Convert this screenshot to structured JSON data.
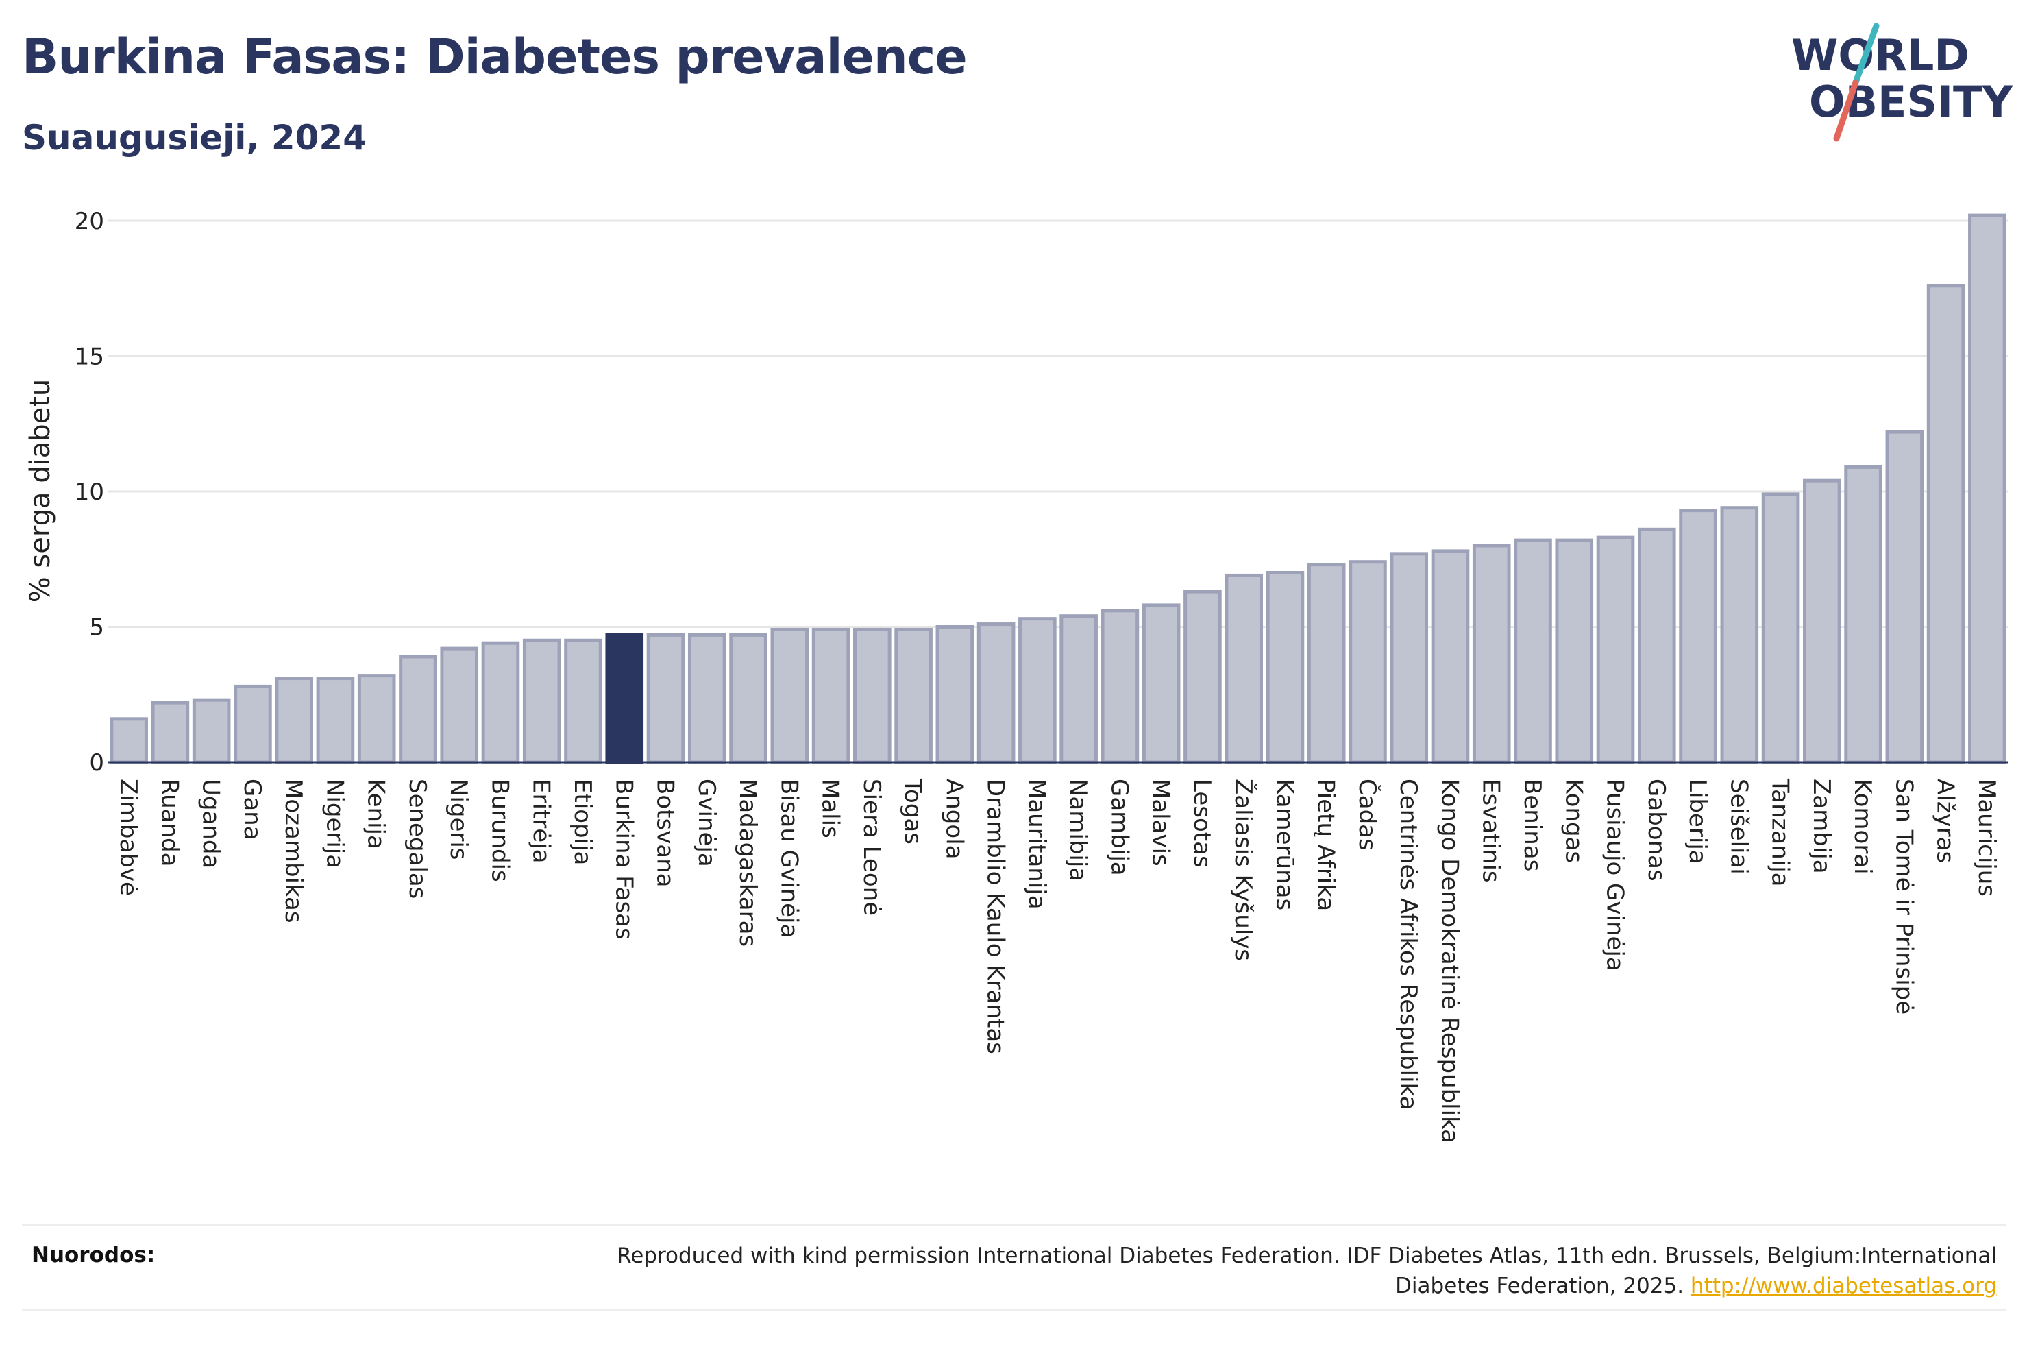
{
  "header": {
    "title": "Burkina Fasas: Diabetes prevalence",
    "subtitle": "Suaugusieji, 2024"
  },
  "logo": {
    "line1": "WORLD",
    "line2": "OBESITY"
  },
  "footer": {
    "label": "Nuorodos:",
    "text_line1": "Reproduced with kind permission International Diabetes Federation. IDF Diabetes Atlas, 11th edn. Brussels, Belgium:International",
    "text_line2": "Diabetes Federation, 2025.",
    "link": "http://www.diabetesatlas.org"
  },
  "colors": {
    "bar": "#c0c3d0",
    "bar_stroke": "#9da2b8",
    "highlight": "#2b3660",
    "title": "#2b3660",
    "link": "#e8a800"
  },
  "chart_data": {
    "type": "bar",
    "title": "Burkina Fasas: Diabetes prevalence",
    "subtitle": "Suaugusieji, 2024",
    "xlabel": "",
    "ylabel": "% serga diabetu",
    "ylim": [
      0,
      20.5
    ],
    "yticks": [
      0,
      5,
      10,
      15,
      20
    ],
    "grid": true,
    "highlight": "Burkina Fasas",
    "categories": [
      "Zimbabvė",
      "Ruanda",
      "Uganda",
      "Gana",
      "Mozambikas",
      "Nigerija",
      "Kenija",
      "Senegalas",
      "Nigeris",
      "Burundis",
      "Eritrėja",
      "Etiopija",
      "Burkina Fasas",
      "Botsvana",
      "Gvinėja",
      "Madagaskaras",
      "Bisau Gvinėja",
      "Malis",
      "Siera Leonė",
      "Togas",
      "Angola",
      "Dramblio Kaulo Krantas",
      "Mauritanija",
      "Namibija",
      "Gambija",
      "Malavis",
      "Lesotas",
      "Žaliasis Kyšulys",
      "Kamerūnas",
      "Pietų Afrika",
      "Čadas",
      "Centrinės Afrikos Respublika",
      "Kongo Demokratinė Respublika",
      "Esvatinis",
      "Beninas",
      "Kongas",
      "Pusiaujo Gvinėja",
      "Gabonas",
      "Liberija",
      "Seišeliai",
      "Tanzanija",
      "Zambija",
      "Komorai",
      "San Tomė ir Prinsipė",
      "Alžyras",
      "Mauricijus"
    ],
    "values": [
      1.6,
      2.2,
      2.3,
      2.8,
      3.1,
      3.1,
      3.2,
      3.9,
      4.2,
      4.4,
      4.5,
      4.5,
      4.7,
      4.7,
      4.7,
      4.7,
      4.9,
      4.9,
      4.9,
      4.9,
      5.0,
      5.1,
      5.3,
      5.4,
      5.6,
      5.8,
      6.3,
      6.9,
      7.0,
      7.3,
      7.4,
      7.7,
      7.8,
      8.0,
      8.2,
      8.2,
      8.3,
      8.6,
      9.3,
      9.4,
      9.9,
      10.4,
      10.9,
      12.2,
      17.6,
      20.2
    ]
  }
}
